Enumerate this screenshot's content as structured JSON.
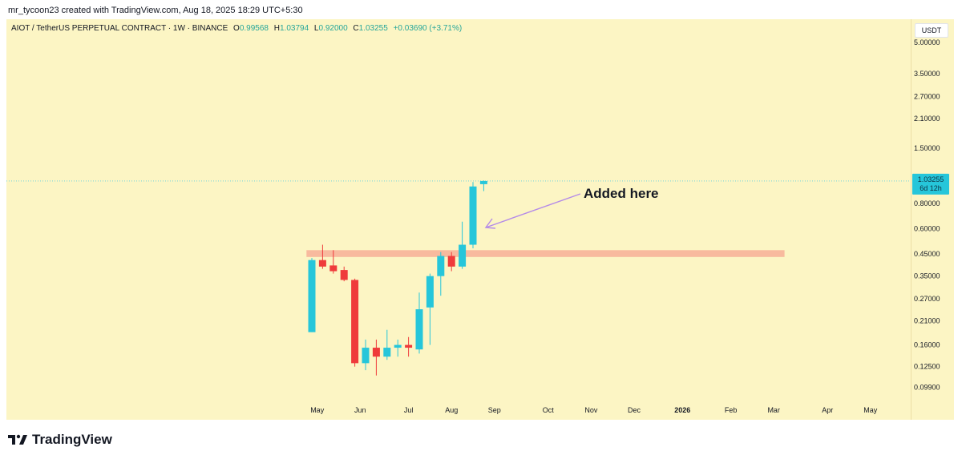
{
  "header": {
    "credit": "mr_tycoon23 created with TradingView.com, Aug 18, 2025 18:29 UTC+5:30"
  },
  "legend": {
    "symbol": "AIOT / TetherUS PERPETUAL CONTRACT · 1W · BINANCE",
    "open_key": "O",
    "open": "0.99568",
    "high_key": "H",
    "high": "1.03794",
    "low_key": "L",
    "low": "0.92000",
    "close_key": "C",
    "close": "1.03255",
    "change": "+0.03690 (+3.71%)"
  },
  "currency": "USDT",
  "price_tag": {
    "price": "1.03255",
    "countdown": "6d 12h"
  },
  "annotation": {
    "text": "Added here"
  },
  "brand": {
    "name": "TradingView"
  },
  "colors": {
    "up": "#26c6da",
    "down": "#ef3b3b",
    "zone": "#f7b49a",
    "arrow": "#b48ae8",
    "background": "#fcf5c4",
    "last_price_line": "#5fd0dd"
  },
  "chart_data": {
    "type": "candlestick",
    "interval": "1W",
    "scale": "log",
    "ylim": [
      0.085,
      6.5
    ],
    "y_ticks": [
      5.0,
      3.5,
      2.7,
      2.1,
      1.5,
      0.8,
      0.6,
      0.45,
      0.35,
      0.27,
      0.21,
      0.16,
      0.125,
      0.099
    ],
    "y_tick_labels": [
      "5.00000",
      "3.50000",
      "2.70000",
      "2.10000",
      "1.50000",
      "0.80000",
      "0.60000",
      "0.45000",
      "0.35000",
      "0.27000",
      "0.21000",
      "0.16000",
      "0.12500",
      "0.09900"
    ],
    "x_ticks": [
      {
        "label": "May",
        "week": 1.5
      },
      {
        "label": "Jun",
        "week": 5.5
      },
      {
        "label": "Jul",
        "week": 10
      },
      {
        "label": "Aug",
        "week": 14
      },
      {
        "label": "Sep",
        "week": 18
      },
      {
        "label": "Oct",
        "week": 23
      },
      {
        "label": "Nov",
        "week": 27
      },
      {
        "label": "Dec",
        "week": 31
      },
      {
        "label": "2026",
        "week": 35.5,
        "bold": true
      },
      {
        "label": "Feb",
        "week": 40
      },
      {
        "label": "Mar",
        "week": 44
      },
      {
        "label": "Apr",
        "week": 49
      },
      {
        "label": "May",
        "week": 53
      }
    ],
    "candles": [
      {
        "o": 0.185,
        "h": 0.43,
        "l": 0.185,
        "c": 0.42
      },
      {
        "o": 0.42,
        "h": 0.5,
        "l": 0.38,
        "c": 0.39
      },
      {
        "o": 0.395,
        "h": 0.47,
        "l": 0.36,
        "c": 0.37
      },
      {
        "o": 0.375,
        "h": 0.39,
        "l": 0.33,
        "c": 0.335
      },
      {
        "o": 0.335,
        "h": 0.34,
        "l": 0.125,
        "c": 0.13
      },
      {
        "o": 0.13,
        "h": 0.17,
        "l": 0.12,
        "c": 0.155
      },
      {
        "o": 0.155,
        "h": 0.17,
        "l": 0.113,
        "c": 0.14
      },
      {
        "o": 0.14,
        "h": 0.19,
        "l": 0.135,
        "c": 0.155
      },
      {
        "o": 0.155,
        "h": 0.17,
        "l": 0.14,
        "c": 0.16
      },
      {
        "o": 0.16,
        "h": 0.175,
        "l": 0.14,
        "c": 0.155
      },
      {
        "o": 0.152,
        "h": 0.29,
        "l": 0.145,
        "c": 0.24
      },
      {
        "o": 0.245,
        "h": 0.36,
        "l": 0.16,
        "c": 0.35
      },
      {
        "o": 0.35,
        "h": 0.46,
        "l": 0.28,
        "c": 0.44
      },
      {
        "o": 0.44,
        "h": 0.46,
        "l": 0.37,
        "c": 0.39
      },
      {
        "o": 0.39,
        "h": 0.65,
        "l": 0.38,
        "c": 0.5
      },
      {
        "o": 0.5,
        "h": 1.02,
        "l": 0.48,
        "c": 0.97
      },
      {
        "o": 0.99568,
        "h": 1.03794,
        "l": 0.92,
        "c": 1.03255
      }
    ],
    "zones": [
      {
        "low": 0.435,
        "high": 0.47,
        "from_week": 0,
        "to_week": 44
      }
    ],
    "last_price": 1.03255
  }
}
